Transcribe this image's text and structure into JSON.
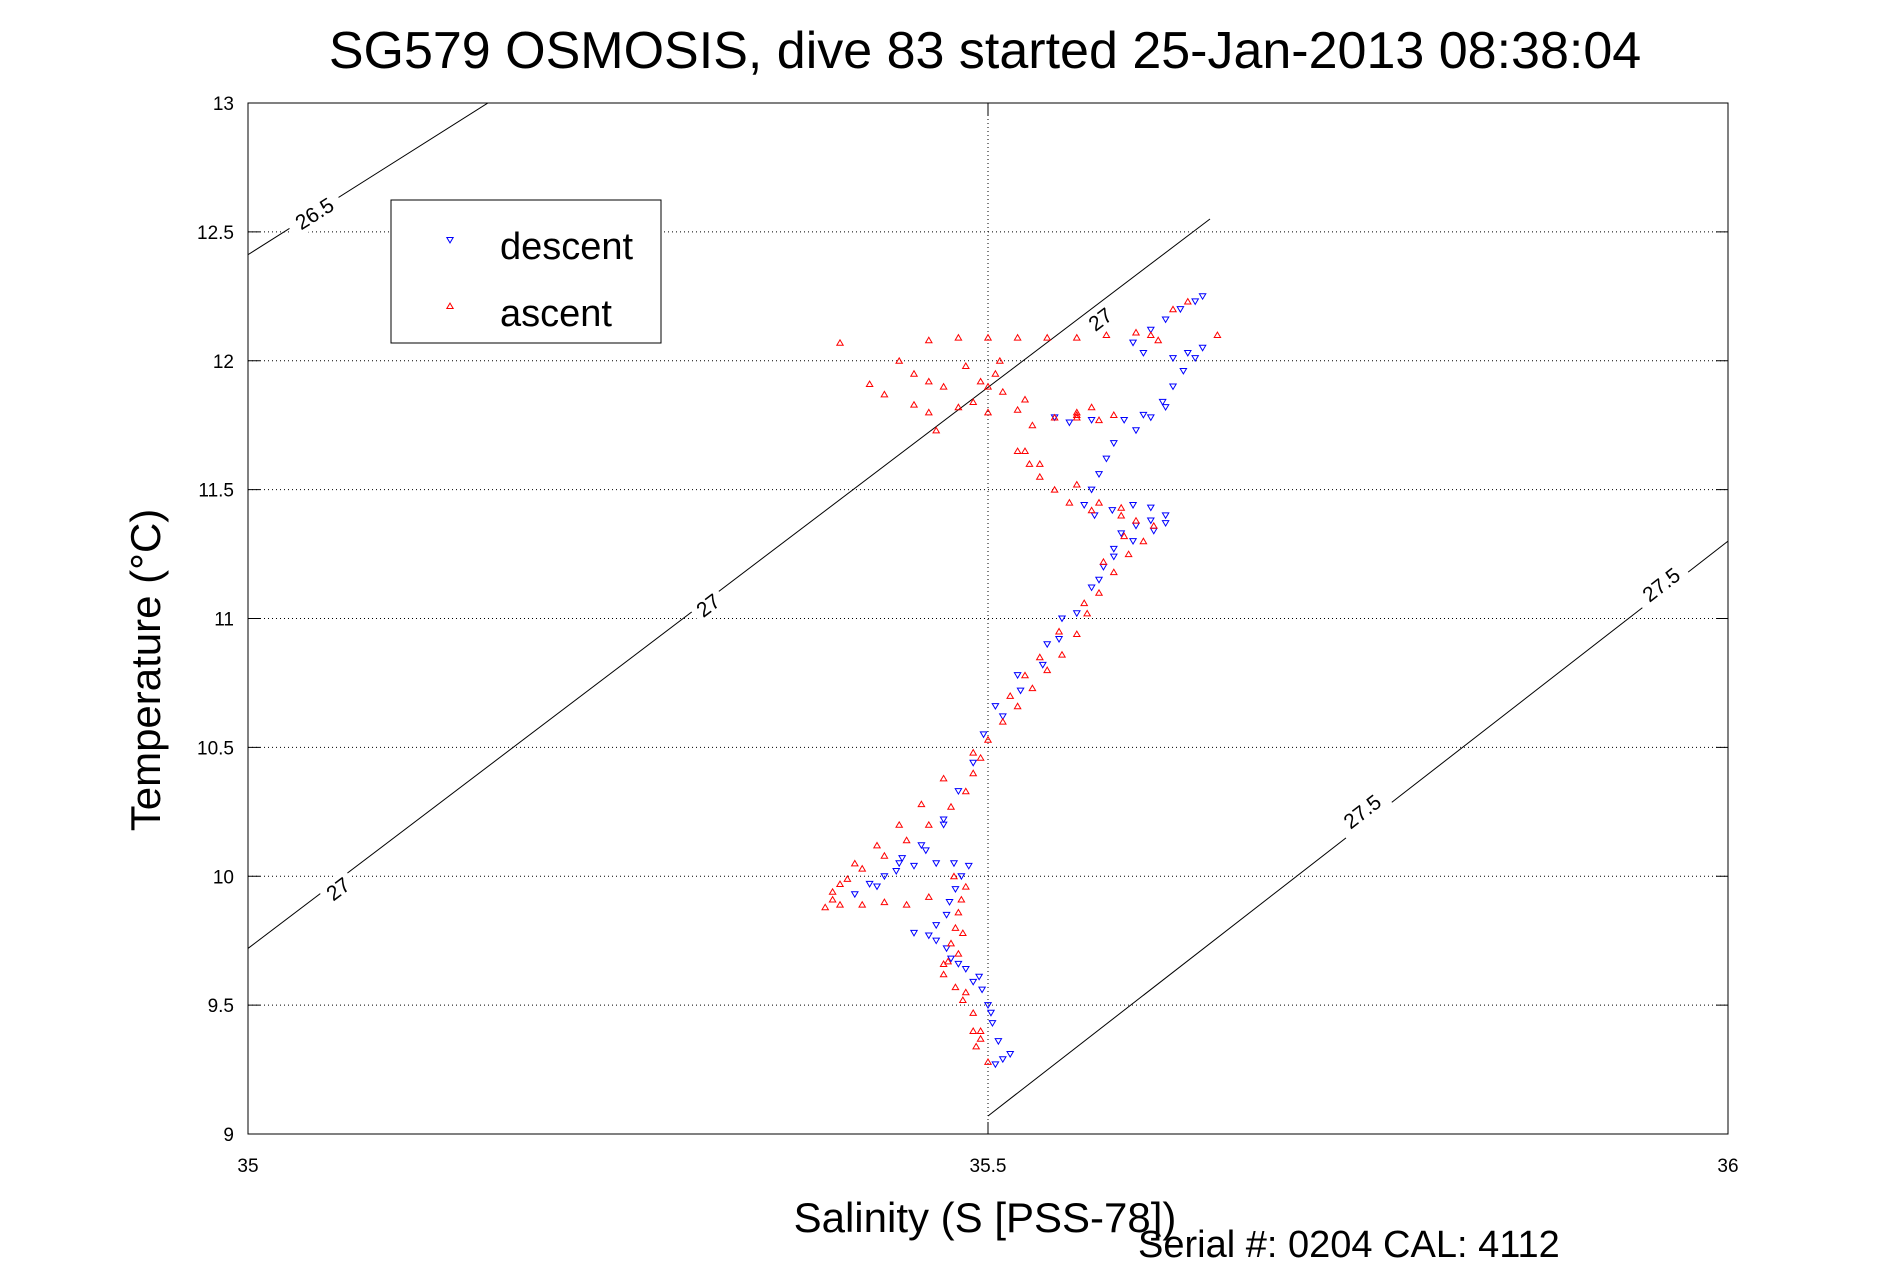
{
  "chart_data": {
    "type": "scatter",
    "title": "SG579 OSMOSIS, dive 83 started 25-Jan-2013 08:38:04",
    "xlabel": "Salinity (S [PSS-78])",
    "ylabel": "Temperature (°C)",
    "footer": "Serial #: 0204  CAL: 4112",
    "xlim": [
      35,
      36
    ],
    "ylim": [
      9,
      13
    ],
    "xticks": [
      "35",
      "35.5",
      "36"
    ],
    "yticks": [
      "9",
      "9.5",
      "10",
      "10.5",
      "11",
      "11.5",
      "12",
      "12.5",
      "13"
    ],
    "grid": true,
    "legend_position": "top-left",
    "isopycnals": [
      {
        "label": "26.5",
        "points": [
          [
            34.95,
            12.23
          ],
          [
            35.6,
            14.59
          ]
        ],
        "label_at": [
          [
            35.045,
            12.57
          ]
        ]
      },
      {
        "label": "27",
        "points": [
          [
            35.0,
            9.72
          ],
          [
            35.65,
            12.55
          ]
        ],
        "label_at": [
          [
            35.061,
            9.95
          ],
          [
            35.311,
            11.05
          ],
          [
            35.576,
            12.16
          ]
        ]
      },
      {
        "label": "27.5",
        "points": [
          [
            35.5,
            9.07
          ],
          [
            36.0,
            11.3
          ]
        ],
        "label_at": [
          [
            35.753,
            10.25
          ],
          [
            35.955,
            11.13
          ]
        ]
      }
    ],
    "series": [
      {
        "name": "descent",
        "marker": "down-triangle",
        "color": "#0000ff",
        "points": [
          [
            35.505,
            9.27
          ],
          [
            35.51,
            9.29
          ],
          [
            35.515,
            9.31
          ],
          [
            35.507,
            9.36
          ],
          [
            35.503,
            9.43
          ],
          [
            35.5,
            9.5
          ],
          [
            35.496,
            9.56
          ],
          [
            35.494,
            9.61
          ],
          [
            35.485,
            9.64
          ],
          [
            35.475,
            9.68
          ],
          [
            35.472,
            9.72
          ],
          [
            35.465,
            9.75
          ],
          [
            35.46,
            9.77
          ],
          [
            35.45,
            9.78
          ],
          [
            35.465,
            9.81
          ],
          [
            35.472,
            9.85
          ],
          [
            35.474,
            9.9
          ],
          [
            35.478,
            9.95
          ],
          [
            35.482,
            10.0
          ],
          [
            35.487,
            10.04
          ],
          [
            35.477,
            10.05
          ],
          [
            35.465,
            10.05
          ],
          [
            35.45,
            10.04
          ],
          [
            35.438,
            10.02
          ],
          [
            35.43,
            10.0
          ],
          [
            35.42,
            9.97
          ],
          [
            35.41,
            9.93
          ],
          [
            35.425,
            9.96
          ],
          [
            35.44,
            10.05
          ],
          [
            35.455,
            10.12
          ],
          [
            35.47,
            10.22
          ],
          [
            35.48,
            10.33
          ],
          [
            35.49,
            10.44
          ],
          [
            35.497,
            10.55
          ],
          [
            35.51,
            10.62
          ],
          [
            35.522,
            10.72
          ],
          [
            35.537,
            10.82
          ],
          [
            35.548,
            10.92
          ],
          [
            35.56,
            11.02
          ],
          [
            35.57,
            11.12
          ],
          [
            35.578,
            11.2
          ],
          [
            35.585,
            11.27
          ],
          [
            35.59,
            11.33
          ],
          [
            35.6,
            11.36
          ],
          [
            35.61,
            11.38
          ],
          [
            35.62,
            11.4
          ],
          [
            35.61,
            11.43
          ],
          [
            35.598,
            11.44
          ],
          [
            35.584,
            11.42
          ],
          [
            35.572,
            11.4
          ],
          [
            35.565,
            11.44
          ],
          [
            35.57,
            11.5
          ],
          [
            35.575,
            11.56
          ],
          [
            35.58,
            11.62
          ],
          [
            35.585,
            11.68
          ],
          [
            35.6,
            11.73
          ],
          [
            35.61,
            11.78
          ],
          [
            35.618,
            11.84
          ],
          [
            35.625,
            11.9
          ],
          [
            35.632,
            11.96
          ],
          [
            35.64,
            12.01
          ],
          [
            35.645,
            12.05
          ],
          [
            35.635,
            12.03
          ],
          [
            35.625,
            12.01
          ],
          [
            35.605,
            12.03
          ],
          [
            35.598,
            12.07
          ],
          [
            35.61,
            12.12
          ],
          [
            35.62,
            12.16
          ],
          [
            35.63,
            12.2
          ],
          [
            35.64,
            12.23
          ],
          [
            35.645,
            12.25
          ],
          [
            35.62,
            11.82
          ],
          [
            35.605,
            11.79
          ],
          [
            35.592,
            11.77
          ],
          [
            35.57,
            11.77
          ],
          [
            35.555,
            11.76
          ],
          [
            35.545,
            11.78
          ],
          [
            35.585,
            11.24
          ],
          [
            35.575,
            11.15
          ],
          [
            35.55,
            11.0
          ],
          [
            35.54,
            10.9
          ],
          [
            35.52,
            10.78
          ],
          [
            35.505,
            10.66
          ],
          [
            35.47,
            10.2
          ],
          [
            35.442,
            10.07
          ],
          [
            35.458,
            10.1
          ],
          [
            35.612,
            11.34
          ],
          [
            35.62,
            11.37
          ],
          [
            35.598,
            11.3
          ],
          [
            35.502,
            9.47
          ],
          [
            35.49,
            9.59
          ],
          [
            35.48,
            9.66
          ]
        ]
      },
      {
        "name": "ascent",
        "marker": "up-triangle",
        "color": "#ff0000",
        "points": [
          [
            35.5,
            9.28
          ],
          [
            35.492,
            9.34
          ],
          [
            35.495,
            9.4
          ],
          [
            35.49,
            9.47
          ],
          [
            35.483,
            9.52
          ],
          [
            35.478,
            9.57
          ],
          [
            35.47,
            9.62
          ],
          [
            35.473,
            9.67
          ],
          [
            35.475,
            9.74
          ],
          [
            35.478,
            9.8
          ],
          [
            35.48,
            9.86
          ],
          [
            35.482,
            9.91
          ],
          [
            35.485,
            9.96
          ],
          [
            35.477,
            10.0
          ],
          [
            35.46,
            9.92
          ],
          [
            35.445,
            9.89
          ],
          [
            35.43,
            9.9
          ],
          [
            35.415,
            9.89
          ],
          [
            35.4,
            9.89
          ],
          [
            35.39,
            9.88
          ],
          [
            35.395,
            9.94
          ],
          [
            35.405,
            9.99
          ],
          [
            35.415,
            10.03
          ],
          [
            35.43,
            10.08
          ],
          [
            35.445,
            10.14
          ],
          [
            35.46,
            10.2
          ],
          [
            35.475,
            10.27
          ],
          [
            35.485,
            10.33
          ],
          [
            35.49,
            10.4
          ],
          [
            35.495,
            10.46
          ],
          [
            35.5,
            10.53
          ],
          [
            35.51,
            10.6
          ],
          [
            35.52,
            10.66
          ],
          [
            35.53,
            10.73
          ],
          [
            35.54,
            10.8
          ],
          [
            35.55,
            10.86
          ],
          [
            35.56,
            10.94
          ],
          [
            35.567,
            11.02
          ],
          [
            35.575,
            11.1
          ],
          [
            35.585,
            11.18
          ],
          [
            35.595,
            11.25
          ],
          [
            35.605,
            11.3
          ],
          [
            35.612,
            11.36
          ],
          [
            35.59,
            11.4
          ],
          [
            35.57,
            11.42
          ],
          [
            35.555,
            11.45
          ],
          [
            35.545,
            11.5
          ],
          [
            35.535,
            11.55
          ],
          [
            35.528,
            11.6
          ],
          [
            35.525,
            11.65
          ],
          [
            35.53,
            11.75
          ],
          [
            35.545,
            11.78
          ],
          [
            35.56,
            11.78
          ],
          [
            35.575,
            11.77
          ],
          [
            35.585,
            11.79
          ],
          [
            35.56,
            11.8
          ],
          [
            35.52,
            11.81
          ],
          [
            35.5,
            11.8
          ],
          [
            35.49,
            11.84
          ],
          [
            35.48,
            11.82
          ],
          [
            35.47,
            11.9
          ],
          [
            35.46,
            11.92
          ],
          [
            35.45,
            11.95
          ],
          [
            35.44,
            12.0
          ],
          [
            35.42,
            11.91
          ],
          [
            35.43,
            11.87
          ],
          [
            35.46,
            11.8
          ],
          [
            35.465,
            11.73
          ],
          [
            35.45,
            11.83
          ],
          [
            35.505,
            11.95
          ],
          [
            35.5,
            11.9
          ],
          [
            35.4,
            12.07
          ],
          [
            35.46,
            12.08
          ],
          [
            35.48,
            12.09
          ],
          [
            35.5,
            12.09
          ],
          [
            35.52,
            12.09
          ],
          [
            35.54,
            12.09
          ],
          [
            35.56,
            12.09
          ],
          [
            35.58,
            12.1
          ],
          [
            35.6,
            12.11
          ],
          [
            35.61,
            12.1
          ],
          [
            35.615,
            12.08
          ],
          [
            35.625,
            12.2
          ],
          [
            35.635,
            12.23
          ],
          [
            35.655,
            12.1
          ],
          [
            35.51,
            11.88
          ],
          [
            35.525,
            11.85
          ],
          [
            35.495,
            11.92
          ],
          [
            35.485,
            11.98
          ],
          [
            35.508,
            12.0
          ],
          [
            35.56,
            11.79
          ],
          [
            35.57,
            11.82
          ],
          [
            35.52,
            11.65
          ],
          [
            35.535,
            11.6
          ],
          [
            35.56,
            11.52
          ],
          [
            35.575,
            11.45
          ],
          [
            35.59,
            11.43
          ],
          [
            35.6,
            11.38
          ],
          [
            35.592,
            11.32
          ],
          [
            35.578,
            11.22
          ],
          [
            35.565,
            11.06
          ],
          [
            35.548,
            10.95
          ],
          [
            35.535,
            10.85
          ],
          [
            35.525,
            10.78
          ],
          [
            35.515,
            10.7
          ],
          [
            35.49,
            10.48
          ],
          [
            35.47,
            10.38
          ],
          [
            35.455,
            10.28
          ],
          [
            35.44,
            10.2
          ],
          [
            35.425,
            10.12
          ],
          [
            35.41,
            10.05
          ],
          [
            35.4,
            9.97
          ],
          [
            35.395,
            9.91
          ],
          [
            35.47,
            9.66
          ],
          [
            35.485,
            9.55
          ],
          [
            35.49,
            9.4
          ],
          [
            35.495,
            9.37
          ],
          [
            35.48,
            9.7
          ],
          [
            35.483,
            9.78
          ]
        ]
      }
    ]
  }
}
